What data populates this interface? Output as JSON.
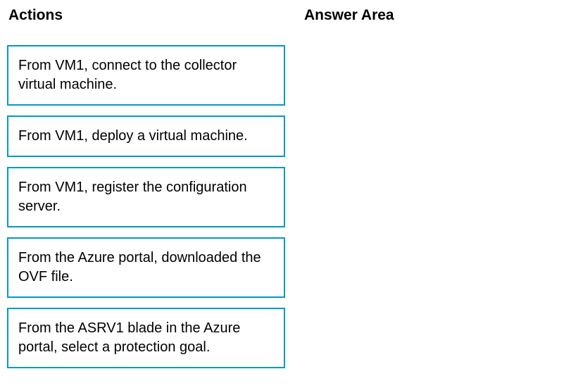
{
  "headers": {
    "actions": "Actions",
    "answer_area": "Answer Area"
  },
  "actions": {
    "items": [
      "From VM1, connect to the collector virtual machine.",
      "From VM1, deploy a virtual machine.",
      "From VM1, register the configuration server.",
      "From the Azure portal, downloaded the OVF file.",
      "From the ASRV1 blade in the Azure portal, select a protection goal."
    ]
  },
  "styling": {
    "border_color": "#0099cc",
    "background_color": "#ffffff",
    "text_color": "#000000",
    "header_fontsize": 21,
    "item_fontsize": 20,
    "border_width": 2
  }
}
